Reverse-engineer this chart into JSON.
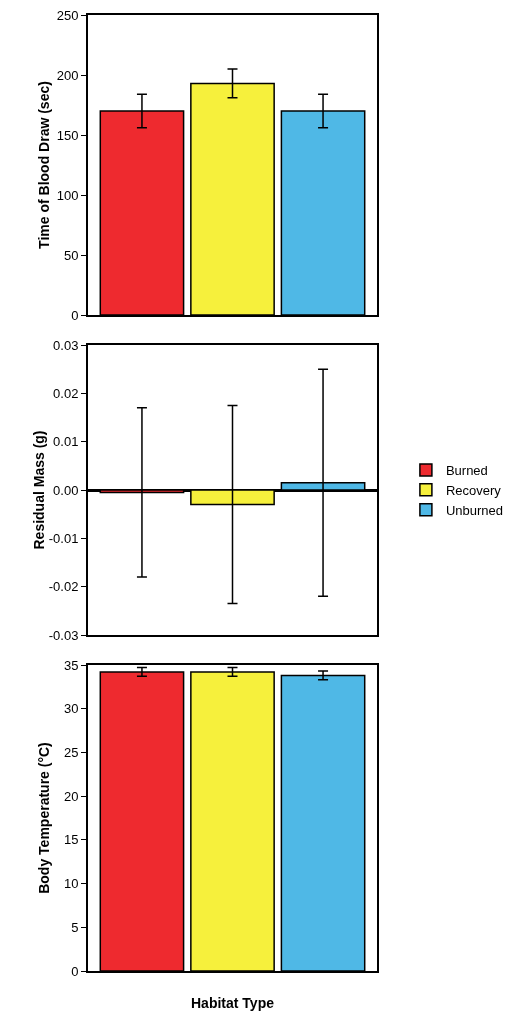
{
  "chart_data": [
    {
      "type": "bar",
      "ylabel": "Time of Blood Draw (sec)",
      "categories": [
        null
      ],
      "ylim": [
        0,
        250
      ],
      "yticks": [
        0,
        50,
        100,
        150,
        200,
        250
      ],
      "tick_labels": "y",
      "legend": false,
      "series": [
        {
          "color": "#ee2a2f",
          "values": [
            170
          ],
          "errors": [
            14
          ]
        },
        {
          "color": "#f6f03c",
          "values": [
            193
          ],
          "errors": [
            12
          ]
        },
        {
          "color": "#4fb8e6",
          "values": [
            170
          ],
          "errors": [
            14
          ]
        }
      ]
    },
    {
      "type": "bar",
      "ylabel": "Residual Mass (g)",
      "categories": [
        null
      ],
      "ylim": [
        -0.03,
        0.03
      ],
      "yticks": [
        -0.03,
        -0.02,
        -0.01,
        {
          "value": 0,
          "label": "0.00"
        },
        0.01,
        0.02,
        0.03
      ],
      "tick_labels": "y",
      "legend": "right",
      "series": [
        {
          "name": "Burned",
          "color": "#ee2a2f",
          "values": [
            -0.0005
          ],
          "errors": [
            0.0175
          ]
        },
        {
          "name": "Recovery",
          "color": "#f6f03c",
          "values": [
            -0.003
          ],
          "errors": [
            0.0205
          ]
        },
        {
          "name": "Unburned",
          "color": "#4fb8e6",
          "values": [
            0.0015
          ],
          "errors": [
            0.0235
          ]
        }
      ]
    },
    {
      "type": "bar",
      "ylabel": "Body Temperature (°C)",
      "xlabel": "Habitat Type",
      "categories": [
        null
      ],
      "ylim": [
        0,
        35
      ],
      "yticks": [
        0,
        5,
        10,
        15,
        20,
        25,
        30,
        35
      ],
      "tick_labels": "y",
      "legend": false,
      "series": [
        {
          "color": "#ee2a2f",
          "values": [
            34.2
          ],
          "errors": [
            0.5
          ]
        },
        {
          "color": "#f6f03c",
          "values": [
            34.2
          ],
          "errors": [
            0.5
          ]
        },
        {
          "color": "#4fb8e6",
          "values": [
            33.8
          ],
          "errors": [
            0.5
          ]
        }
      ]
    }
  ]
}
